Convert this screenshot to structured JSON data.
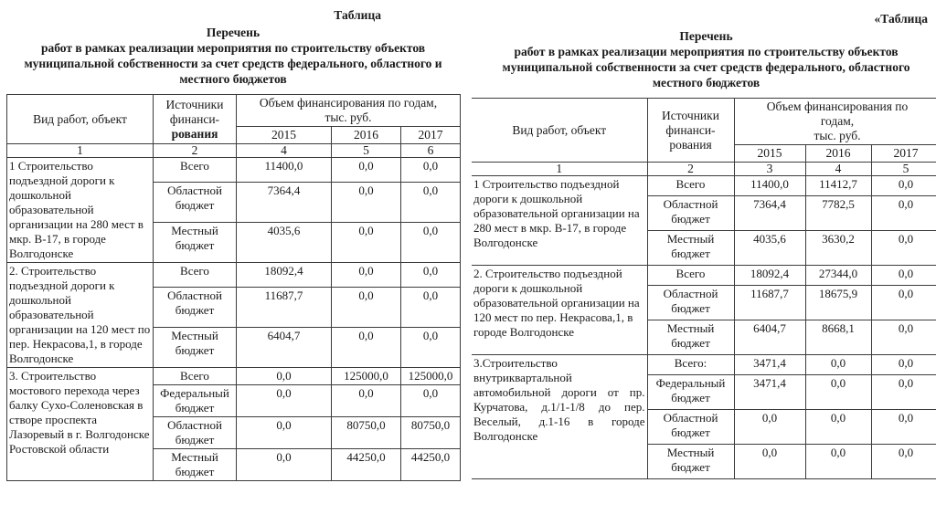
{
  "page": {
    "background": "#ffffff",
    "text_color": "#1a1a1a",
    "border_color": "#3c3c3c"
  },
  "panels": [
    {
      "side": "left",
      "corner_label": "Таблица",
      "title_lines": [
        "Перечень",
        "работ в рамках реализации мероприятия по строительству объектов",
        "муниципальной собственности за счет средств федерального, областного и",
        "местного бюджетов"
      ],
      "header": {
        "col_object": "Вид работ, объект",
        "col_source_lines": [
          {
            "text": "Источники",
            "bold": false
          },
          {
            "text": "финанси-",
            "bold": false
          },
          {
            "text": "рования",
            "bold": true
          }
        ],
        "span_lines": [
          "Объем финансирования по годам,",
          "тыс. руб."
        ],
        "years": [
          "2015",
          "2016",
          "2017"
        ],
        "col_numbers": [
          "1",
          "2",
          "4",
          "5",
          "6"
        ]
      },
      "groups": [
        {
          "object": "1 Строительство подъездной дороги к дошкольной образовательной организации на 280 мест в мкр. В-17, в городе Волгодонске",
          "rows": [
            {
              "source": "Всего",
              "values": [
                "11400,0",
                "0,0",
                "0,0"
              ]
            },
            {
              "source": "Областной бюджет",
              "values": [
                "7364,4",
                "0,0",
                "0,0"
              ]
            },
            {
              "source": "Местный бюджет",
              "values": [
                "4035,6",
                "0,0",
                "0,0"
              ]
            }
          ]
        },
        {
          "object": "2. Строительство подъездной дороги к дошкольной образовательной организации на 120 мест по пер. Некрасова,1, в городе Волгодонске",
          "rows": [
            {
              "source": "Всего",
              "values": [
                "18092,4",
                "0,0",
                "0,0"
              ]
            },
            {
              "source": "Областной бюджет",
              "values": [
                "11687,7",
                "0,0",
                "0,0"
              ]
            },
            {
              "source": "Местный бюджет",
              "values": [
                "6404,7",
                "0,0",
                "0,0"
              ]
            }
          ]
        },
        {
          "object": "3. Строительство мостового перехода через балку Сухо-Соленовская в створе проспекта Лазоревый в г. Волгодонске Ростовской области",
          "rows": [
            {
              "source": "Всего",
              "values": [
                "0,0",
                "125000,0",
                "125000,0"
              ]
            },
            {
              "source": "Федеральный бюджет",
              "values": [
                "0,0",
                "0,0",
                "0,0"
              ]
            },
            {
              "source": "Областной бюджет",
              "values": [
                "0,0",
                "80750,0",
                "80750,0"
              ]
            },
            {
              "source": "Местный бюджет",
              "values": [
                "0,0",
                "44250,0",
                "44250,0"
              ]
            }
          ]
        }
      ]
    },
    {
      "side": "right",
      "corner_label": "«Таблица",
      "title_lines": [
        "Перечень",
        "работ в рамках реализации мероприятия по строительству объектов",
        "муниципальной собственности за счет средств федерального, областного",
        "местного бюджетов"
      ],
      "header": {
        "col_object": "Вид работ, объект",
        "col_source_lines": [
          {
            "text": "Источники",
            "bold": false
          },
          {
            "text": "финанси-",
            "bold": false
          },
          {
            "text": "рования",
            "bold": false
          }
        ],
        "span_lines": [
          "Объем финансирования по",
          "годам,",
          "тыс. руб."
        ],
        "years": [
          "2015",
          "2016",
          "2017"
        ],
        "col_numbers": [
          "1",
          "2",
          "3",
          "4",
          "5"
        ]
      },
      "groups": [
        {
          "object": "1 Строительство подъездной дороги к дошкольной образовательной организации на 280 мест в мкр. В-17, в городе Волгодонске",
          "rows": [
            {
              "source": "Всего",
              "values": [
                "11400,0",
                "11412,7",
                "0,0"
              ]
            },
            {
              "source": "Областной бюджет",
              "values": [
                "7364,4",
                "7782,5",
                "0,0"
              ]
            },
            {
              "source": "Местный бюджет",
              "values": [
                "4035,6",
                "3630,2",
                "0,0"
              ]
            }
          ]
        },
        {
          "object": "2. Строительство подъездной дороги к дошкольной образовательной организации на 120 мест по пер. Некрасова,1, в городе Волгодонске",
          "rows": [
            {
              "source": "Всего",
              "values": [
                "18092,4",
                "27344,0",
                "0,0"
              ]
            },
            {
              "source": "Областной бюджет",
              "values": [
                "11687,7",
                "18675,9",
                "0,0"
              ]
            },
            {
              "source": "Местный бюджет",
              "values": [
                "6404,7",
                "8668,1",
                "0,0"
              ]
            }
          ]
        },
        {
          "object": "3.Строительство внутриквартальной автомобильной дороги от пр. Курчатова, д.1/1-1/8 до пер. Веселый, д.1-16 в городе Волгодонске",
          "justify": true,
          "rows": [
            {
              "source": "Всего:",
              "values": [
                "3471,4",
                "0,0",
                "0,0"
              ]
            },
            {
              "source": "Федеральный бюджет",
              "values": [
                "3471,4",
                "0,0",
                "0,0"
              ]
            },
            {
              "source": "Областной бюджет",
              "values": [
                "0,0",
                "0,0",
                "0,0"
              ]
            },
            {
              "source": "Местный бюджет",
              "values": [
                "0,0",
                "0,0",
                "0,0"
              ]
            }
          ]
        }
      ]
    }
  ]
}
